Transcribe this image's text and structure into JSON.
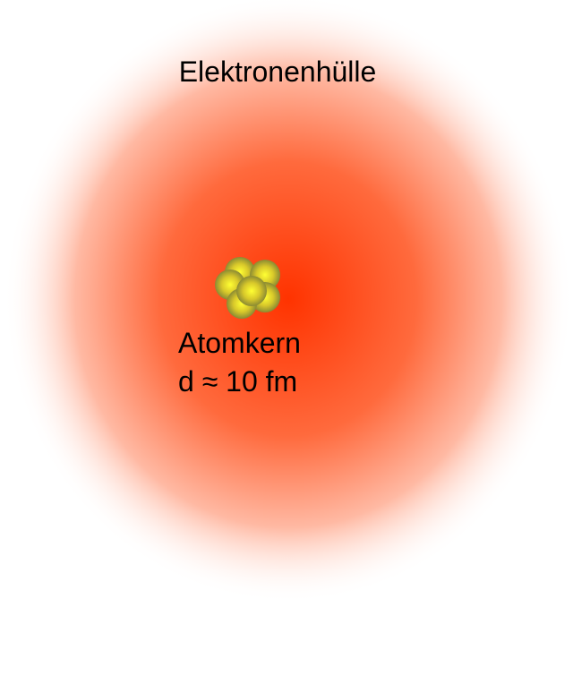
{
  "diagram": {
    "shell_label": "Elektronenhülle",
    "nucleus_label": "Atomkern",
    "diameter_label": "d ≈ 10 fm"
  },
  "colors": {
    "background": "#ffffff",
    "shell_center": "#ff3300",
    "shell_mid": "#ff6a3d",
    "shell_edge": "#ffffff",
    "nucleon_highlight": "#ffff33",
    "nucleon_shadow": "#8a8a33",
    "text": "#000000"
  }
}
